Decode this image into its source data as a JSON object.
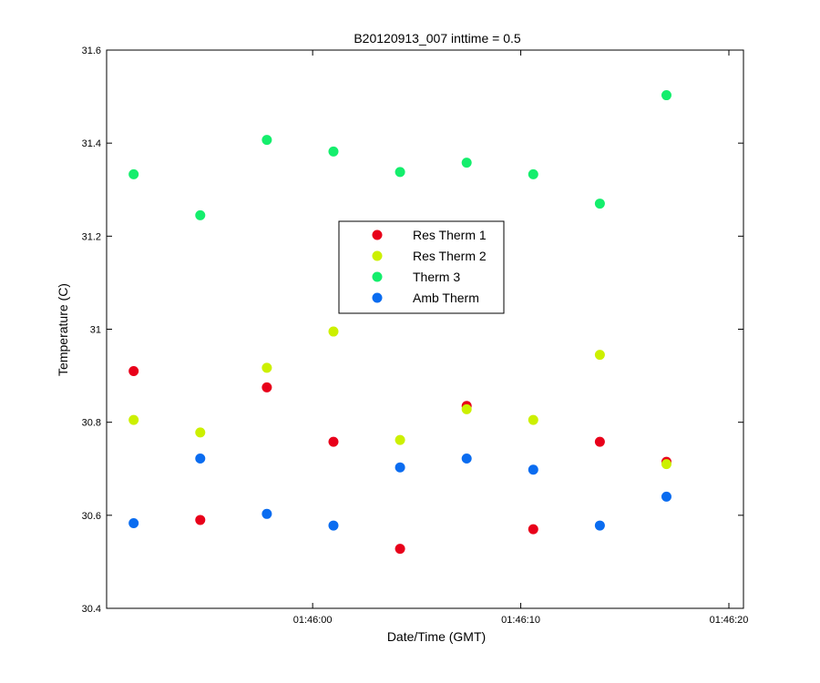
{
  "chart_data": {
    "type": "scatter",
    "title": "B20120913_007 inttime = 0.5",
    "xlabel": "Date/Time (GMT)",
    "ylabel": "Temperature (C)",
    "xlim": [
      "01:45:50.1",
      "01:46:20.7"
    ],
    "ylim": [
      30.4,
      31.6
    ],
    "xticks": [
      "01:46:00",
      "01:46:10",
      "01:46:20"
    ],
    "yticks": [
      "30.4",
      "30.6",
      "30.8",
      "31",
      "31.2",
      "31.4",
      "31.6"
    ],
    "x": [
      "01:45:51.4",
      "01:45:54.6",
      "01:45:57.8",
      "01:46:01.0",
      "01:46:04.2",
      "01:46:07.4",
      "01:46:10.6",
      "01:46:13.8",
      "01:46:17.0"
    ],
    "legend_position": "center",
    "grid": false,
    "series": [
      {
        "name": "Res Therm 1",
        "color": "#e8001a",
        "points": [
          [
            0,
            30.91
          ],
          [
            1,
            30.59
          ],
          [
            2,
            30.875
          ],
          [
            3,
            30.758
          ],
          [
            4,
            30.528
          ],
          [
            5,
            30.835
          ],
          [
            6,
            30.57
          ],
          [
            7,
            30.758
          ],
          [
            8,
            30.715
          ]
        ]
      },
      {
        "name": "Res Therm 2",
        "color": "#ccf000",
        "points": [
          [
            0,
            30.805
          ],
          [
            1,
            30.778
          ],
          [
            2,
            30.917
          ],
          [
            3,
            30.995
          ],
          [
            4,
            30.762
          ],
          [
            5,
            30.828
          ],
          [
            6,
            30.805
          ],
          [
            7,
            30.945
          ],
          [
            8,
            30.71
          ]
        ]
      },
      {
        "name": "Therm 3",
        "color": "#14ee6c",
        "points": [
          [
            0,
            31.333
          ],
          [
            1,
            31.245
          ],
          [
            2,
            31.407
          ],
          [
            3,
            31.382
          ],
          [
            4,
            31.338
          ],
          [
            5,
            31.358
          ],
          [
            6,
            31.333
          ],
          [
            7,
            31.27
          ],
          [
            8,
            31.503
          ]
        ]
      },
      {
        "name": "Amb Therm",
        "color": "#0a6cf0",
        "points": [
          [
            0,
            30.583
          ],
          [
            1,
            30.722
          ],
          [
            2,
            30.603
          ],
          [
            3,
            30.578
          ],
          [
            4,
            30.703
          ],
          [
            5,
            30.722
          ],
          [
            6,
            30.698
          ],
          [
            7,
            30.578
          ],
          [
            8,
            30.64
          ]
        ]
      }
    ]
  }
}
